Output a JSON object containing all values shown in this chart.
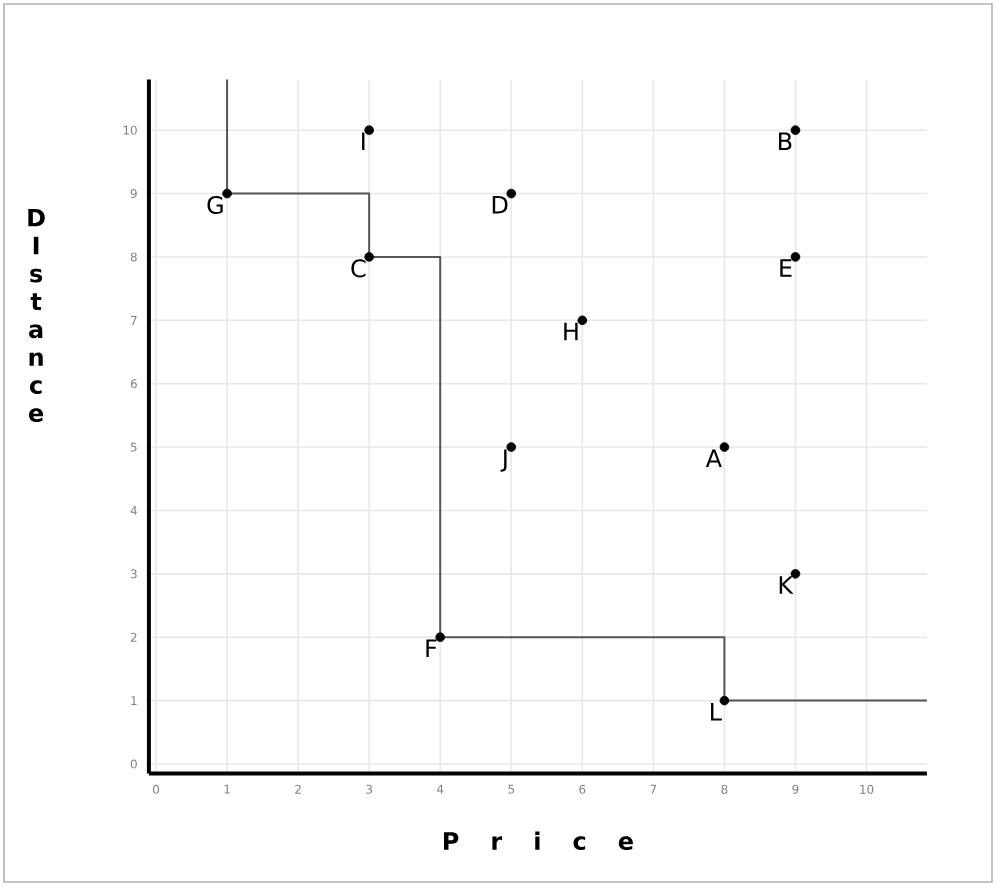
{
  "chart_data": {
    "type": "scatter",
    "xlabel": "P r i c e",
    "ylabel": "D I s t a n c e",
    "xlim": [
      -0.1,
      10.85
    ],
    "ylim": [
      -0.15,
      10.8
    ],
    "xticks": [
      0,
      1,
      2,
      3,
      4,
      5,
      6,
      7,
      8,
      9,
      10
    ],
    "yticks": [
      0,
      1,
      2,
      3,
      4,
      5,
      6,
      7,
      8,
      9,
      10
    ],
    "grid": true,
    "marker": "circle",
    "series": [
      {
        "type": "line",
        "color": "#555555",
        "marker": "none",
        "x": [
          1,
          1,
          3,
          3,
          4,
          4,
          8,
          8,
          10.85
        ],
        "values": [
          10.8,
          9,
          9,
          8,
          8,
          2,
          2,
          1,
          1
        ]
      },
      {
        "color": "#000000",
        "x": [
          8,
          9,
          3,
          5,
          9,
          4,
          1,
          6,
          3,
          5,
          9,
          8
        ],
        "values": [
          5,
          10,
          8,
          9,
          8,
          2,
          9,
          7,
          10,
          5,
          3,
          1
        ]
      }
    ],
    "annotations": [
      {
        "text": "A",
        "x": 8,
        "y": 5
      },
      {
        "text": "B",
        "x": 9,
        "y": 10
      },
      {
        "text": "C",
        "x": 3,
        "y": 8
      },
      {
        "text": "D",
        "x": 5,
        "y": 9
      },
      {
        "text": "E",
        "x": 9,
        "y": 8
      },
      {
        "text": "F",
        "x": 4,
        "y": 2
      },
      {
        "text": "G",
        "x": 1,
        "y": 9
      },
      {
        "text": "H",
        "x": 6,
        "y": 7
      },
      {
        "text": "I",
        "x": 3,
        "y": 10
      },
      {
        "text": "J",
        "x": 5,
        "y": 5
      },
      {
        "text": "K",
        "x": 9,
        "y": 3
      },
      {
        "text": "L",
        "x": 8,
        "y": 1
      }
    ]
  }
}
